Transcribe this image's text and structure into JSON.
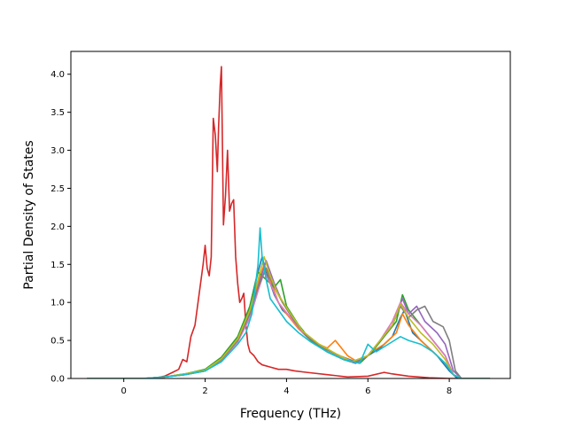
{
  "chart_data": {
    "type": "line",
    "title": "",
    "xlabel": "Frequency (THz)",
    "ylabel": "Partial Density of States",
    "xlim": [
      -1.3,
      9.5
    ],
    "ylim": [
      0.0,
      4.3
    ],
    "xticks": [
      0,
      2,
      4,
      6,
      8
    ],
    "yticks": [
      0.0,
      0.5,
      1.0,
      1.5,
      2.0,
      2.5,
      3.0,
      3.5,
      4.0
    ],
    "xtick_labels": [
      "0",
      "2",
      "4",
      "6",
      "8"
    ],
    "ytick_labels": [
      "0.0",
      "0.5",
      "1.0",
      "1.5",
      "2.0",
      "2.5",
      "3.0",
      "3.5",
      "4.0"
    ],
    "grid": false,
    "legend": "none",
    "series": [
      {
        "color": "#d62728",
        "points": [
          [
            -0.9,
            0
          ],
          [
            0.4,
            0
          ],
          [
            0.8,
            0.01
          ],
          [
            1.0,
            0.03
          ],
          [
            1.2,
            0.08
          ],
          [
            1.35,
            0.12
          ],
          [
            1.45,
            0.25
          ],
          [
            1.55,
            0.22
          ],
          [
            1.65,
            0.55
          ],
          [
            1.75,
            0.7
          ],
          [
            1.85,
            1.1
          ],
          [
            1.95,
            1.5
          ],
          [
            2.0,
            1.75
          ],
          [
            2.05,
            1.45
          ],
          [
            2.1,
            1.35
          ],
          [
            2.15,
            1.6
          ],
          [
            2.2,
            3.42
          ],
          [
            2.25,
            3.2
          ],
          [
            2.3,
            2.72
          ],
          [
            2.33,
            3.3
          ],
          [
            2.37,
            3.85
          ],
          [
            2.4,
            4.1
          ],
          [
            2.45,
            2.02
          ],
          [
            2.5,
            2.4
          ],
          [
            2.55,
            3.0
          ],
          [
            2.6,
            2.2
          ],
          [
            2.65,
            2.3
          ],
          [
            2.7,
            2.35
          ],
          [
            2.75,
            1.6
          ],
          [
            2.8,
            1.25
          ],
          [
            2.85,
            1.0
          ],
          [
            2.9,
            1.05
          ],
          [
            2.95,
            1.12
          ],
          [
            3.0,
            0.72
          ],
          [
            3.05,
            0.45
          ],
          [
            3.1,
            0.35
          ],
          [
            3.2,
            0.3
          ],
          [
            3.3,
            0.22
          ],
          [
            3.4,
            0.18
          ],
          [
            3.6,
            0.15
          ],
          [
            3.8,
            0.12
          ],
          [
            4.0,
            0.12
          ],
          [
            4.2,
            0.1
          ],
          [
            4.5,
            0.08
          ],
          [
            5.0,
            0.05
          ],
          [
            5.5,
            0.02
          ],
          [
            6.0,
            0.03
          ],
          [
            6.4,
            0.08
          ],
          [
            6.6,
            0.06
          ],
          [
            7.0,
            0.03
          ],
          [
            7.5,
            0.01
          ],
          [
            8.0,
            0
          ],
          [
            9.0,
            0
          ]
        ]
      },
      {
        "color": "#1f77b4",
        "points": [
          [
            -0.9,
            0
          ],
          [
            0.5,
            0
          ],
          [
            1.0,
            0.02
          ],
          [
            1.5,
            0.05
          ],
          [
            2.0,
            0.1
          ],
          [
            2.3,
            0.2
          ],
          [
            2.6,
            0.35
          ],
          [
            2.9,
            0.6
          ],
          [
            3.1,
            0.95
          ],
          [
            3.25,
            1.3
          ],
          [
            3.4,
            1.6
          ],
          [
            3.5,
            1.4
          ],
          [
            3.7,
            1.1
          ],
          [
            3.9,
            0.9
          ],
          [
            4.1,
            0.8
          ],
          [
            4.4,
            0.6
          ],
          [
            4.7,
            0.45
          ],
          [
            5.0,
            0.35
          ],
          [
            5.4,
            0.25
          ],
          [
            5.7,
            0.2
          ],
          [
            6.0,
            0.3
          ],
          [
            6.3,
            0.4
          ],
          [
            6.6,
            0.55
          ],
          [
            6.8,
            0.8
          ],
          [
            6.9,
            0.9
          ],
          [
            7.1,
            0.6
          ],
          [
            7.4,
            0.45
          ],
          [
            7.7,
            0.3
          ],
          [
            8.0,
            0.1
          ],
          [
            8.2,
            0
          ],
          [
            9.0,
            0
          ]
        ]
      },
      {
        "color": "#ff7f0e",
        "points": [
          [
            -0.9,
            0
          ],
          [
            0.5,
            0
          ],
          [
            1.0,
            0.02
          ],
          [
            1.5,
            0.06
          ],
          [
            2.0,
            0.1
          ],
          [
            2.4,
            0.25
          ],
          [
            2.8,
            0.5
          ],
          [
            3.1,
            0.9
          ],
          [
            3.3,
            1.25
          ],
          [
            3.45,
            1.5
          ],
          [
            3.6,
            1.3
          ],
          [
            3.8,
            1.0
          ],
          [
            4.0,
            0.85
          ],
          [
            4.3,
            0.65
          ],
          [
            4.6,
            0.5
          ],
          [
            5.0,
            0.4
          ],
          [
            5.2,
            0.5
          ],
          [
            5.5,
            0.3
          ],
          [
            5.8,
            0.2
          ],
          [
            6.1,
            0.35
          ],
          [
            6.4,
            0.45
          ],
          [
            6.7,
            0.6
          ],
          [
            6.85,
            0.85
          ],
          [
            7.0,
            0.7
          ],
          [
            7.3,
            0.5
          ],
          [
            7.6,
            0.35
          ],
          [
            7.9,
            0.2
          ],
          [
            8.1,
            0.05
          ],
          [
            8.3,
            0
          ],
          [
            9.0,
            0
          ]
        ]
      },
      {
        "color": "#2ca02c",
        "points": [
          [
            -0.9,
            0
          ],
          [
            0.5,
            0
          ],
          [
            1.0,
            0.02
          ],
          [
            1.5,
            0.06
          ],
          [
            2.0,
            0.12
          ],
          [
            2.4,
            0.28
          ],
          [
            2.8,
            0.55
          ],
          [
            3.1,
            0.95
          ],
          [
            3.3,
            1.4
          ],
          [
            3.5,
            1.3
          ],
          [
            3.7,
            1.2
          ],
          [
            3.85,
            1.3
          ],
          [
            4.0,
            0.95
          ],
          [
            4.3,
            0.7
          ],
          [
            4.6,
            0.5
          ],
          [
            5.0,
            0.35
          ],
          [
            5.4,
            0.25
          ],
          [
            5.8,
            0.2
          ],
          [
            6.1,
            0.35
          ],
          [
            6.4,
            0.55
          ],
          [
            6.7,
            0.75
          ],
          [
            6.85,
            1.1
          ],
          [
            7.0,
            0.9
          ],
          [
            7.3,
            0.7
          ],
          [
            7.6,
            0.5
          ],
          [
            7.9,
            0.3
          ],
          [
            8.1,
            0.05
          ],
          [
            8.3,
            0
          ],
          [
            9.0,
            0
          ]
        ]
      },
      {
        "color": "#9467bd",
        "points": [
          [
            -0.9,
            0
          ],
          [
            0.5,
            0
          ],
          [
            1.0,
            0.02
          ],
          [
            1.5,
            0.05
          ],
          [
            2.0,
            0.1
          ],
          [
            2.4,
            0.25
          ],
          [
            2.8,
            0.5
          ],
          [
            3.1,
            0.85
          ],
          [
            3.3,
            1.2
          ],
          [
            3.5,
            1.55
          ],
          [
            3.7,
            1.25
          ],
          [
            3.9,
            1.0
          ],
          [
            4.2,
            0.75
          ],
          [
            4.5,
            0.55
          ],
          [
            4.9,
            0.4
          ],
          [
            5.3,
            0.3
          ],
          [
            5.7,
            0.2
          ],
          [
            6.0,
            0.3
          ],
          [
            6.3,
            0.5
          ],
          [
            6.6,
            0.7
          ],
          [
            6.85,
            1.05
          ],
          [
            7.0,
            0.85
          ],
          [
            7.2,
            0.95
          ],
          [
            7.4,
            0.75
          ],
          [
            7.7,
            0.6
          ],
          [
            7.9,
            0.45
          ],
          [
            8.1,
            0.1
          ],
          [
            8.3,
            0
          ],
          [
            9.0,
            0
          ]
        ]
      },
      {
        "color": "#e377c2",
        "points": [
          [
            -0.9,
            0
          ],
          [
            0.5,
            0
          ],
          [
            1.0,
            0.02
          ],
          [
            1.5,
            0.05
          ],
          [
            2.0,
            0.1
          ],
          [
            2.4,
            0.24
          ],
          [
            2.8,
            0.48
          ],
          [
            3.1,
            0.8
          ],
          [
            3.3,
            1.15
          ],
          [
            3.45,
            1.4
          ],
          [
            3.6,
            1.25
          ],
          [
            3.8,
            1.0
          ],
          [
            4.1,
            0.8
          ],
          [
            4.4,
            0.6
          ],
          [
            4.8,
            0.45
          ],
          [
            5.2,
            0.32
          ],
          [
            5.6,
            0.22
          ],
          [
            6.0,
            0.3
          ],
          [
            6.3,
            0.5
          ],
          [
            6.6,
            0.75
          ],
          [
            6.8,
            1.0
          ],
          [
            7.0,
            0.85
          ],
          [
            7.3,
            0.7
          ],
          [
            7.6,
            0.5
          ],
          [
            7.9,
            0.3
          ],
          [
            8.1,
            0.05
          ],
          [
            8.3,
            0
          ],
          [
            9.0,
            0
          ]
        ]
      },
      {
        "color": "#7f7f7f",
        "points": [
          [
            -0.9,
            0
          ],
          [
            0.5,
            0
          ],
          [
            1.0,
            0.02
          ],
          [
            1.5,
            0.05
          ],
          [
            2.0,
            0.1
          ],
          [
            2.4,
            0.25
          ],
          [
            2.8,
            0.5
          ],
          [
            3.1,
            0.85
          ],
          [
            3.3,
            1.2
          ],
          [
            3.5,
            1.45
          ],
          [
            3.7,
            1.2
          ],
          [
            3.9,
            1.0
          ],
          [
            4.2,
            0.75
          ],
          [
            4.5,
            0.55
          ],
          [
            4.9,
            0.4
          ],
          [
            5.3,
            0.3
          ],
          [
            5.7,
            0.22
          ],
          [
            6.0,
            0.3
          ],
          [
            6.3,
            0.5
          ],
          [
            6.6,
            0.7
          ],
          [
            6.8,
            0.95
          ],
          [
            7.0,
            0.8
          ],
          [
            7.2,
            0.9
          ],
          [
            7.4,
            0.95
          ],
          [
            7.6,
            0.75
          ],
          [
            7.85,
            0.68
          ],
          [
            8.0,
            0.5
          ],
          [
            8.15,
            0.1
          ],
          [
            8.3,
            0
          ],
          [
            9.0,
            0
          ]
        ]
      },
      {
        "color": "#bcbd22",
        "points": [
          [
            -0.9,
            0
          ],
          [
            0.5,
            0
          ],
          [
            1.0,
            0.02
          ],
          [
            1.5,
            0.06
          ],
          [
            2.0,
            0.11
          ],
          [
            2.4,
            0.26
          ],
          [
            2.8,
            0.52
          ],
          [
            3.1,
            0.9
          ],
          [
            3.3,
            1.3
          ],
          [
            3.45,
            1.6
          ],
          [
            3.6,
            1.35
          ],
          [
            3.8,
            1.1
          ],
          [
            4.1,
            0.85
          ],
          [
            4.4,
            0.62
          ],
          [
            4.8,
            0.45
          ],
          [
            5.2,
            0.33
          ],
          [
            5.6,
            0.22
          ],
          [
            6.0,
            0.3
          ],
          [
            6.3,
            0.5
          ],
          [
            6.6,
            0.7
          ],
          [
            6.8,
            0.98
          ],
          [
            7.0,
            0.8
          ],
          [
            7.3,
            0.6
          ],
          [
            7.6,
            0.45
          ],
          [
            7.9,
            0.25
          ],
          [
            8.1,
            0.05
          ],
          [
            8.3,
            0
          ],
          [
            9.0,
            0
          ]
        ]
      },
      {
        "color": "#17becf",
        "points": [
          [
            -0.9,
            0
          ],
          [
            0.5,
            0
          ],
          [
            1.0,
            0.02
          ],
          [
            1.5,
            0.05
          ],
          [
            2.0,
            0.1
          ],
          [
            2.4,
            0.22
          ],
          [
            2.8,
            0.45
          ],
          [
            3.0,
            0.6
          ],
          [
            3.15,
            0.85
          ],
          [
            3.3,
            1.5
          ],
          [
            3.35,
            1.98
          ],
          [
            3.4,
            1.6
          ],
          [
            3.5,
            1.3
          ],
          [
            3.6,
            1.05
          ],
          [
            3.8,
            0.9
          ],
          [
            4.0,
            0.75
          ],
          [
            4.3,
            0.6
          ],
          [
            4.6,
            0.48
          ],
          [
            5.0,
            0.35
          ],
          [
            5.4,
            0.25
          ],
          [
            5.8,
            0.2
          ],
          [
            6.0,
            0.45
          ],
          [
            6.2,
            0.35
          ],
          [
            6.5,
            0.45
          ],
          [
            6.8,
            0.55
          ],
          [
            7.0,
            0.5
          ],
          [
            7.3,
            0.45
          ],
          [
            7.6,
            0.35
          ],
          [
            7.9,
            0.2
          ],
          [
            8.1,
            0.05
          ],
          [
            8.3,
            0
          ],
          [
            9.0,
            0
          ]
        ]
      }
    ]
  }
}
